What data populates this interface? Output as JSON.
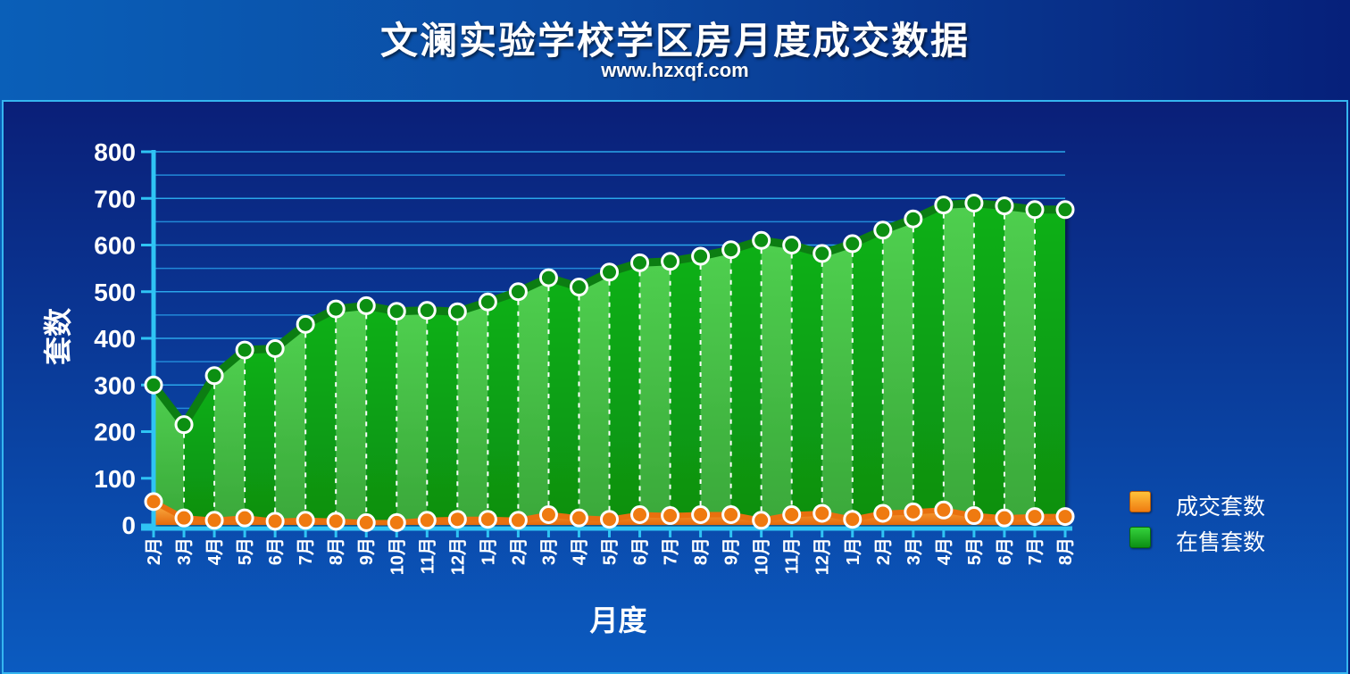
{
  "header": {
    "title": "文澜实验学校学区房月度成交数据",
    "subtitle": "www.hzxqf.com"
  },
  "chart_data": {
    "type": "area",
    "xlabel": "月度",
    "ylabel": "套数",
    "ylim": [
      0,
      800
    ],
    "yticks": [
      0,
      100,
      200,
      300,
      400,
      500,
      600,
      700,
      800
    ],
    "grid": true,
    "legend_position": "right",
    "categories": [
      "2月",
      "3月",
      "4月",
      "5月",
      "6月",
      "7月",
      "8月",
      "9月",
      "10月",
      "11月",
      "12月",
      "1月",
      "2月",
      "3月",
      "4月",
      "5月",
      "6月",
      "7月",
      "8月",
      "9月",
      "10月",
      "11月",
      "12月",
      "1月",
      "2月",
      "3月",
      "4月",
      "5月",
      "6月",
      "7月",
      "8月"
    ],
    "series": [
      {
        "name": "成交套数",
        "color": "#f07f16",
        "values": [
          50,
          15,
          10,
          15,
          8,
          10,
          8,
          5,
          5,
          10,
          12,
          12,
          10,
          22,
          15,
          12,
          22,
          20,
          22,
          22,
          10,
          22,
          25,
          12,
          25,
          28,
          32,
          20,
          15,
          18,
          18
        ]
      },
      {
        "name": "在售套数",
        "color": "#13a51b",
        "values": [
          300,
          215,
          320,
          375,
          378,
          430,
          463,
          470,
          458,
          460,
          457,
          478,
          500,
          530,
          510,
          542,
          562,
          565,
          576,
          590,
          610,
          600,
          582,
          603,
          632,
          656,
          686,
          690,
          684,
          676,
          676
        ]
      }
    ]
  }
}
